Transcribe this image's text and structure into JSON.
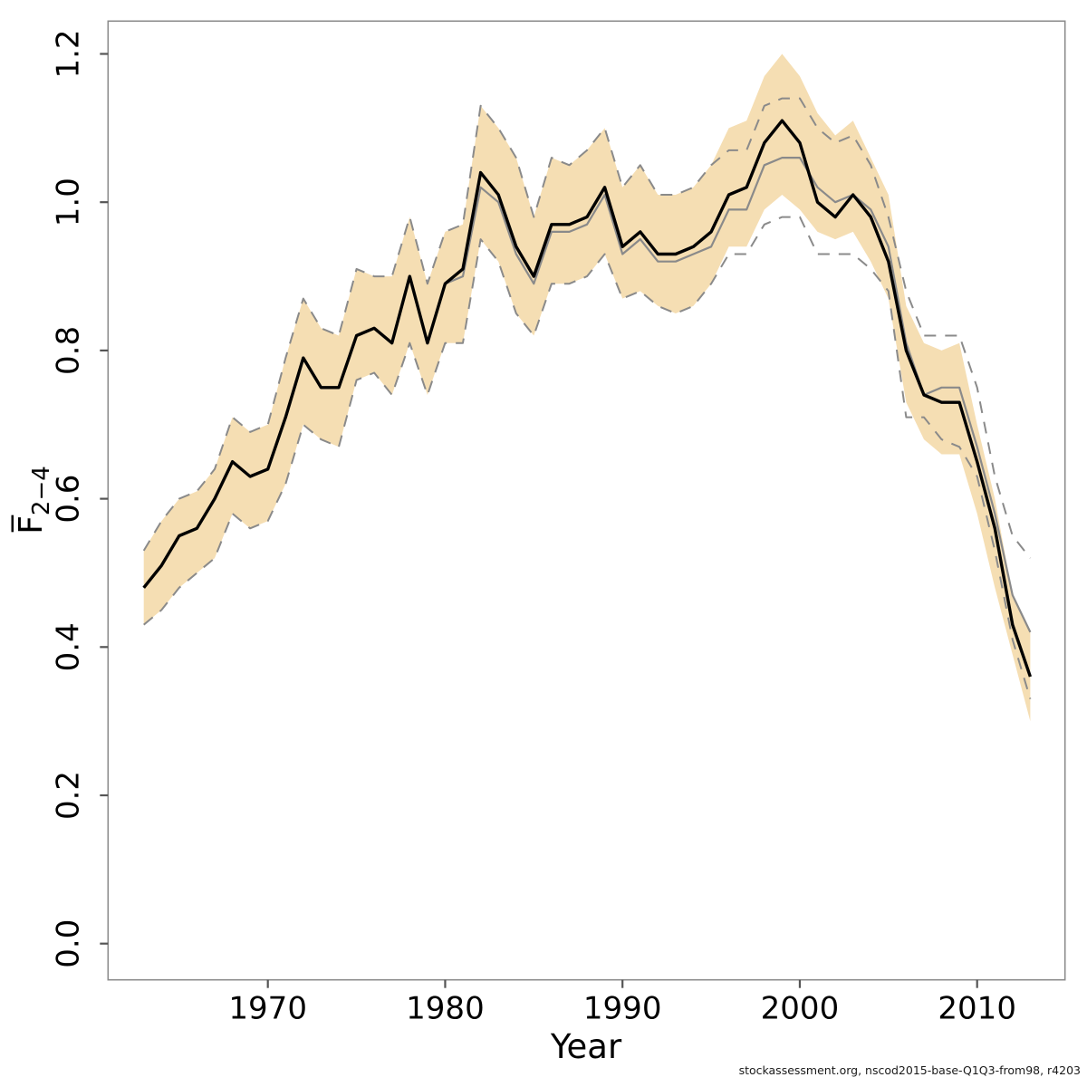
{
  "figure": {
    "xlabel": "Year",
    "ylabel_main": "F̅",
    "ylabel_sub": "2−4",
    "footer": "stockassessment.org, nscod2015-base-Q1Q3-from98, r4203"
  },
  "chart_data": {
    "type": "line",
    "title": "",
    "xlabel": "Year",
    "ylabel": "Mean fishing mortality F ages 2-4",
    "xlim": [
      1963,
      2013
    ],
    "ylim": [
      0,
      1.2
    ],
    "grid": false,
    "legend": "none",
    "xticks": [
      1970,
      1980,
      1990,
      2000,
      2010
    ],
    "xtick_labels": [
      "1970",
      "1980",
      "1990",
      "2000",
      "2010"
    ],
    "yticks": [
      0.0,
      0.2,
      0.4,
      0.6,
      0.8,
      1.0,
      1.2
    ],
    "ytick_labels": [
      "0.0",
      "0.2",
      "0.4",
      "0.6",
      "0.8",
      "1.0",
      "1.2"
    ],
    "colors": {
      "band": "#f5deb3",
      "gray": "#8a8a8a",
      "black": "#000000",
      "axis": "#555555",
      "box": "#8c8c8c"
    },
    "x": [
      1963,
      1964,
      1965,
      1966,
      1967,
      1968,
      1969,
      1970,
      1971,
      1972,
      1973,
      1974,
      1975,
      1976,
      1977,
      1978,
      1979,
      1980,
      1981,
      1982,
      1983,
      1984,
      1985,
      1986,
      1987,
      1988,
      1989,
      1990,
      1991,
      1992,
      1993,
      1994,
      1995,
      1996,
      1997,
      1998,
      1999,
      2000,
      2001,
      2002,
      2003,
      2004,
      2005,
      2006,
      2007,
      2008,
      2009,
      2010,
      2011,
      2012,
      2013
    ],
    "band": {
      "name": "95% confidence band of estimated F (shaded)",
      "color": "#f5deb3",
      "lo": [
        0.43,
        0.45,
        0.48,
        0.5,
        0.52,
        0.58,
        0.56,
        0.57,
        0.62,
        0.7,
        0.68,
        0.67,
        0.76,
        0.77,
        0.74,
        0.81,
        0.74,
        0.81,
        0.81,
        0.95,
        0.92,
        0.85,
        0.82,
        0.89,
        0.89,
        0.9,
        0.93,
        0.87,
        0.88,
        0.86,
        0.85,
        0.86,
        0.89,
        0.94,
        0.94,
        0.99,
        1.01,
        0.99,
        0.96,
        0.95,
        0.96,
        0.92,
        0.87,
        0.73,
        0.68,
        0.66,
        0.66,
        0.58,
        0.48,
        0.39,
        0.3
      ],
      "hi": [
        0.53,
        0.57,
        0.6,
        0.61,
        0.64,
        0.71,
        0.69,
        0.7,
        0.79,
        0.87,
        0.83,
        0.82,
        0.91,
        0.9,
        0.9,
        0.98,
        0.89,
        0.96,
        0.97,
        1.13,
        1.1,
        1.06,
        0.98,
        1.06,
        1.05,
        1.07,
        1.1,
        1.02,
        1.05,
        1.01,
        1.01,
        1.02,
        1.05,
        1.1,
        1.11,
        1.17,
        1.2,
        1.17,
        1.12,
        1.09,
        1.11,
        1.06,
        1.01,
        0.86,
        0.81,
        0.8,
        0.81,
        0.7,
        0.6,
        0.47,
        0.42
      ]
    },
    "series": [
      {
        "name": "comparison-ci-lower-dashed",
        "label": "comparison run 95% CI lower (dashed gray)",
        "color": "#8a8a8a",
        "width": 2,
        "dash": "13 10",
        "values": [
          0.43,
          0.45,
          0.48,
          0.5,
          0.52,
          0.58,
          0.56,
          0.57,
          0.62,
          0.7,
          0.68,
          0.67,
          0.76,
          0.77,
          0.74,
          0.81,
          0.74,
          0.81,
          0.81,
          0.95,
          0.92,
          0.85,
          0.82,
          0.89,
          0.89,
          0.9,
          0.93,
          0.87,
          0.88,
          0.86,
          0.85,
          0.86,
          0.89,
          0.93,
          0.93,
          0.97,
          0.98,
          0.98,
          0.93,
          0.93,
          0.93,
          0.91,
          0.88,
          0.71,
          0.71,
          0.68,
          0.67,
          0.63,
          0.53,
          0.41,
          0.33
        ]
      },
      {
        "name": "comparison-ci-upper-dashed",
        "label": "comparison run 95% CI upper (dashed gray)",
        "color": "#8a8a8a",
        "width": 2,
        "dash": "13 10",
        "values": [
          0.53,
          0.57,
          0.6,
          0.61,
          0.64,
          0.71,
          0.69,
          0.7,
          0.79,
          0.87,
          0.83,
          0.82,
          0.91,
          0.9,
          0.9,
          0.98,
          0.89,
          0.96,
          0.97,
          1.13,
          1.1,
          1.06,
          0.98,
          1.06,
          1.05,
          1.07,
          1.1,
          1.02,
          1.05,
          1.01,
          1.01,
          1.02,
          1.05,
          1.07,
          1.07,
          1.13,
          1.14,
          1.14,
          1.1,
          1.08,
          1.09,
          1.05,
          0.98,
          0.88,
          0.82,
          0.82,
          0.82,
          0.75,
          0.63,
          0.55,
          0.52
        ]
      },
      {
        "name": "comparison-run-line",
        "label": "comparison fit (solid gray)",
        "color": "#8a8a8a",
        "width": 2.2,
        "dash": null,
        "values": [
          0.48,
          0.51,
          0.55,
          0.56,
          0.6,
          0.65,
          0.63,
          0.64,
          0.71,
          0.79,
          0.75,
          0.75,
          0.82,
          0.83,
          0.81,
          0.9,
          0.81,
          0.89,
          0.9,
          1.02,
          1.0,
          0.93,
          0.89,
          0.96,
          0.96,
          0.97,
          1.01,
          0.93,
          0.95,
          0.92,
          0.92,
          0.93,
          0.94,
          0.99,
          0.99,
          1.05,
          1.06,
          1.06,
          1.02,
          1.0,
          1.01,
          0.99,
          0.94,
          0.81,
          0.74,
          0.75,
          0.75,
          0.67,
          0.58,
          0.47,
          0.42
        ]
      },
      {
        "name": "estimated-f-line",
        "label": "estimated F (solid black)",
        "color": "#000000",
        "width": 3.4,
        "dash": null,
        "values": [
          0.48,
          0.51,
          0.55,
          0.56,
          0.6,
          0.65,
          0.63,
          0.64,
          0.71,
          0.79,
          0.75,
          0.75,
          0.82,
          0.83,
          0.81,
          0.9,
          0.81,
          0.89,
          0.91,
          1.04,
          1.01,
          0.94,
          0.9,
          0.97,
          0.97,
          0.98,
          1.02,
          0.94,
          0.96,
          0.93,
          0.93,
          0.94,
          0.96,
          1.01,
          1.02,
          1.08,
          1.11,
          1.08,
          1.0,
          0.98,
          1.01,
          0.98,
          0.92,
          0.8,
          0.74,
          0.73,
          0.73,
          0.65,
          0.56,
          0.43,
          0.36
        ]
      }
    ]
  }
}
